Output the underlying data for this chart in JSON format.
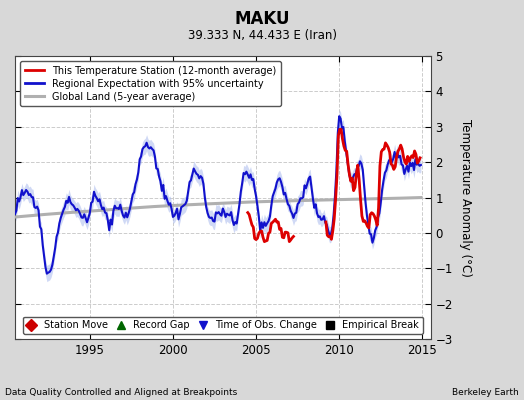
{
  "title": "MAKU",
  "subtitle": "39.333 N, 44.433 E (Iran)",
  "xlabel_left": "Data Quality Controlled and Aligned at Breakpoints",
  "xlabel_right": "Berkeley Earth",
  "ylabel": "Temperature Anomaly (°C)",
  "ylim": [
    -3,
    5
  ],
  "xlim": [
    1990.5,
    2015.5
  ],
  "xticks": [
    1995,
    2000,
    2005,
    2010,
    2015
  ],
  "yticks": [
    -3,
    -2,
    -1,
    0,
    1,
    2,
    3,
    4,
    5
  ],
  "bg_color": "#d8d8d8",
  "plot_bg_color": "#ffffff",
  "grid_color": "#cccccc",
  "station_color": "#dd0000",
  "regional_color": "#1111cc",
  "regional_fill_color": "#aabbee",
  "global_color": "#b0b0b0",
  "legend_items": [
    {
      "label": "This Temperature Station (12-month average)",
      "color": "#dd0000",
      "lw": 2.0
    },
    {
      "label": "Regional Expectation with 95% uncertainty",
      "color": "#1111cc",
      "lw": 2.0
    },
    {
      "label": "Global Land (5-year average)",
      "color": "#b0b0b0",
      "lw": 2.5
    }
  ],
  "bottom_legend": [
    {
      "label": "Station Move",
      "color": "#cc0000",
      "marker": "D"
    },
    {
      "label": "Record Gap",
      "color": "#006600",
      "marker": "^"
    },
    {
      "label": "Time of Obs. Change",
      "color": "#1111cc",
      "marker": "v"
    },
    {
      "label": "Empirical Break",
      "color": "#000000",
      "marker": "s"
    }
  ]
}
